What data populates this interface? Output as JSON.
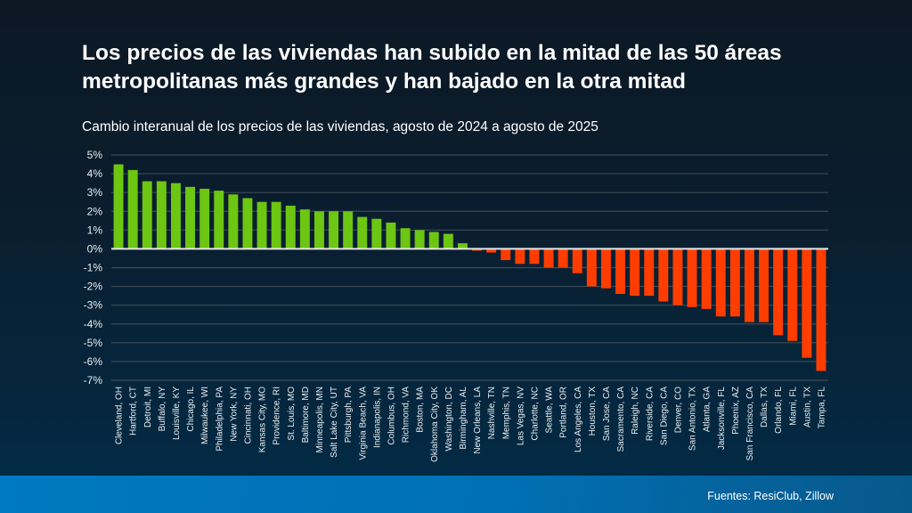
{
  "header": {
    "title": "Los precios de las viviendas han subido en la mitad de las 50 áreas metropolitanas más grandes y han bajado en la otra mitad",
    "subtitle": "Cambio interanual de los precios de las viviendas, agosto de 2024 a agosto de 2025"
  },
  "footer": {
    "source": "Fuentes: ResiClub, Zillow"
  },
  "colors": {
    "positive": "#6cc612",
    "negative": "#ff3d00",
    "gridline": "#3c4a56",
    "zeroline": "#e6e6e6"
  },
  "chart_data": {
    "type": "bar",
    "title": "Los precios de las viviendas han subido en la mitad de las 50 áreas metropolitanas más grandes y han bajado en la otra mitad",
    "subtitle": "Cambio interanual de los precios de las viviendas, agosto de 2024 a agosto de 2025",
    "xlabel": "",
    "ylabel": "",
    "ylim": [
      -7,
      5
    ],
    "yticks": [
      5,
      4,
      3,
      2,
      1,
      0,
      -1,
      -2,
      -3,
      -4,
      -5,
      -6,
      -7
    ],
    "ytick_labels": [
      "5%",
      "4%",
      "3%",
      "2%",
      "1%",
      "0%",
      "-1%",
      "-2%",
      "-3%",
      "-4%",
      "-5%",
      "-6%",
      "-7%"
    ],
    "grid": true,
    "legend": "none",
    "categories": [
      "Cleveland, OH",
      "Hartford, CT",
      "Detroit, MI",
      "Buffalo, NY",
      "Louisville, KY",
      "Chicago, IL",
      "Milwaukee, WI",
      "Philadelphia, PA",
      "New York, NY",
      "Cincinnati, OH",
      "Kansas City, MO",
      "Providence, RI",
      "St. Louis, MO",
      "Baltimore, MD",
      "Minneapolis, MN",
      "Salt Lake City, UT",
      "Pittsburgh, PA",
      "Virginia Beach, VA",
      "Indianapolis, IN",
      "Columbus, OH",
      "Richmond, VA",
      "Boston, MA",
      "Oklahoma City, OK",
      "Washington, DC",
      "Birmingham, AL",
      "New Orleans, LA",
      "Nashville, TN",
      "Memphis, TN",
      "Las Vegas, NV",
      "Charlotte, NC",
      "Seattle, WA",
      "Portland, OR",
      "Los Angeles, CA",
      "Houston, TX",
      "San Jose, CA",
      "Sacramento, CA",
      "Raleigh, NC",
      "Riverside, CA",
      "San Diego, CA",
      "Denver, CO",
      "San Antonio, TX",
      "Atlanta, GA",
      "Jacksonville, FL",
      "Phoenix, AZ",
      "San Francisco, CA",
      "Dallas, TX",
      "Orlando, FL",
      "Miami, FL",
      "Austin, TX",
      "Tampa, FL"
    ],
    "values": [
      4.5,
      4.2,
      3.6,
      3.6,
      3.5,
      3.3,
      3.2,
      3.1,
      2.9,
      2.7,
      2.5,
      2.5,
      2.3,
      2.1,
      2.0,
      2.0,
      2.0,
      1.7,
      1.6,
      1.4,
      1.1,
      1.0,
      0.9,
      0.8,
      0.3,
      -0.1,
      -0.2,
      -0.6,
      -0.8,
      -0.8,
      -1.0,
      -1.0,
      -1.3,
      -2.0,
      -2.1,
      -2.4,
      -2.5,
      -2.5,
      -2.8,
      -3.0,
      -3.1,
      -3.2,
      -3.6,
      -3.6,
      -3.9,
      -3.9,
      -4.6,
      -4.9,
      -5.8,
      -6.5
    ],
    "unit": "%"
  }
}
